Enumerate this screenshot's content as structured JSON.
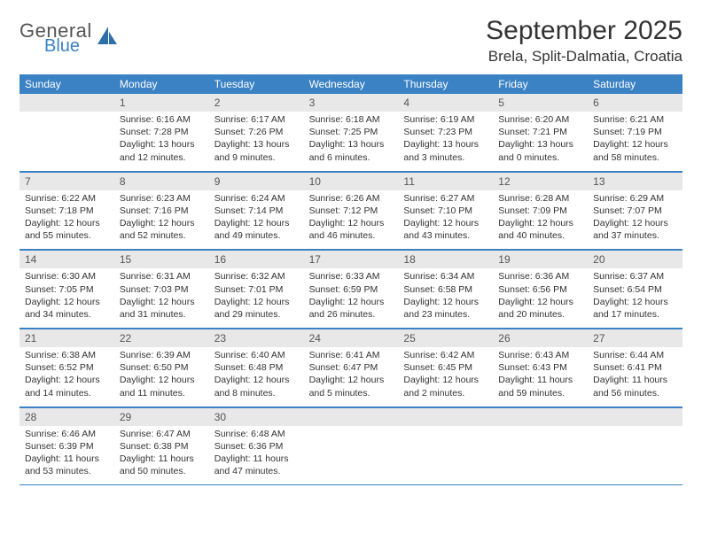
{
  "brand": {
    "general": "General",
    "blue": "Blue",
    "iconColor": "#2f6fa8"
  },
  "header": {
    "monthTitle": "September 2025",
    "location": "Brela, Split-Dalmatia, Croatia"
  },
  "colors": {
    "headerBar": "#3b82c4",
    "dayNumBand": "#e8e8e8",
    "ruleLine": "#3b82c4",
    "text": "#333333",
    "background": "#ffffff"
  },
  "weekdays": [
    "Sunday",
    "Monday",
    "Tuesday",
    "Wednesday",
    "Thursday",
    "Friday",
    "Saturday"
  ],
  "weeks": [
    [
      {
        "day": "",
        "sunrise": "",
        "sunset": "",
        "daylight": ""
      },
      {
        "day": "1",
        "sunrise": "Sunrise: 6:16 AM",
        "sunset": "Sunset: 7:28 PM",
        "daylight": "Daylight: 13 hours and 12 minutes."
      },
      {
        "day": "2",
        "sunrise": "Sunrise: 6:17 AM",
        "sunset": "Sunset: 7:26 PM",
        "daylight": "Daylight: 13 hours and 9 minutes."
      },
      {
        "day": "3",
        "sunrise": "Sunrise: 6:18 AM",
        "sunset": "Sunset: 7:25 PM",
        "daylight": "Daylight: 13 hours and 6 minutes."
      },
      {
        "day": "4",
        "sunrise": "Sunrise: 6:19 AM",
        "sunset": "Sunset: 7:23 PM",
        "daylight": "Daylight: 13 hours and 3 minutes."
      },
      {
        "day": "5",
        "sunrise": "Sunrise: 6:20 AM",
        "sunset": "Sunset: 7:21 PM",
        "daylight": "Daylight: 13 hours and 0 minutes."
      },
      {
        "day": "6",
        "sunrise": "Sunrise: 6:21 AM",
        "sunset": "Sunset: 7:19 PM",
        "daylight": "Daylight: 12 hours and 58 minutes."
      }
    ],
    [
      {
        "day": "7",
        "sunrise": "Sunrise: 6:22 AM",
        "sunset": "Sunset: 7:18 PM",
        "daylight": "Daylight: 12 hours and 55 minutes."
      },
      {
        "day": "8",
        "sunrise": "Sunrise: 6:23 AM",
        "sunset": "Sunset: 7:16 PM",
        "daylight": "Daylight: 12 hours and 52 minutes."
      },
      {
        "day": "9",
        "sunrise": "Sunrise: 6:24 AM",
        "sunset": "Sunset: 7:14 PM",
        "daylight": "Daylight: 12 hours and 49 minutes."
      },
      {
        "day": "10",
        "sunrise": "Sunrise: 6:26 AM",
        "sunset": "Sunset: 7:12 PM",
        "daylight": "Daylight: 12 hours and 46 minutes."
      },
      {
        "day": "11",
        "sunrise": "Sunrise: 6:27 AM",
        "sunset": "Sunset: 7:10 PM",
        "daylight": "Daylight: 12 hours and 43 minutes."
      },
      {
        "day": "12",
        "sunrise": "Sunrise: 6:28 AM",
        "sunset": "Sunset: 7:09 PM",
        "daylight": "Daylight: 12 hours and 40 minutes."
      },
      {
        "day": "13",
        "sunrise": "Sunrise: 6:29 AM",
        "sunset": "Sunset: 7:07 PM",
        "daylight": "Daylight: 12 hours and 37 minutes."
      }
    ],
    [
      {
        "day": "14",
        "sunrise": "Sunrise: 6:30 AM",
        "sunset": "Sunset: 7:05 PM",
        "daylight": "Daylight: 12 hours and 34 minutes."
      },
      {
        "day": "15",
        "sunrise": "Sunrise: 6:31 AM",
        "sunset": "Sunset: 7:03 PM",
        "daylight": "Daylight: 12 hours and 31 minutes."
      },
      {
        "day": "16",
        "sunrise": "Sunrise: 6:32 AM",
        "sunset": "Sunset: 7:01 PM",
        "daylight": "Daylight: 12 hours and 29 minutes."
      },
      {
        "day": "17",
        "sunrise": "Sunrise: 6:33 AM",
        "sunset": "Sunset: 6:59 PM",
        "daylight": "Daylight: 12 hours and 26 minutes."
      },
      {
        "day": "18",
        "sunrise": "Sunrise: 6:34 AM",
        "sunset": "Sunset: 6:58 PM",
        "daylight": "Daylight: 12 hours and 23 minutes."
      },
      {
        "day": "19",
        "sunrise": "Sunrise: 6:36 AM",
        "sunset": "Sunset: 6:56 PM",
        "daylight": "Daylight: 12 hours and 20 minutes."
      },
      {
        "day": "20",
        "sunrise": "Sunrise: 6:37 AM",
        "sunset": "Sunset: 6:54 PM",
        "daylight": "Daylight: 12 hours and 17 minutes."
      }
    ],
    [
      {
        "day": "21",
        "sunrise": "Sunrise: 6:38 AM",
        "sunset": "Sunset: 6:52 PM",
        "daylight": "Daylight: 12 hours and 14 minutes."
      },
      {
        "day": "22",
        "sunrise": "Sunrise: 6:39 AM",
        "sunset": "Sunset: 6:50 PM",
        "daylight": "Daylight: 12 hours and 11 minutes."
      },
      {
        "day": "23",
        "sunrise": "Sunrise: 6:40 AM",
        "sunset": "Sunset: 6:48 PM",
        "daylight": "Daylight: 12 hours and 8 minutes."
      },
      {
        "day": "24",
        "sunrise": "Sunrise: 6:41 AM",
        "sunset": "Sunset: 6:47 PM",
        "daylight": "Daylight: 12 hours and 5 minutes."
      },
      {
        "day": "25",
        "sunrise": "Sunrise: 6:42 AM",
        "sunset": "Sunset: 6:45 PM",
        "daylight": "Daylight: 12 hours and 2 minutes."
      },
      {
        "day": "26",
        "sunrise": "Sunrise: 6:43 AM",
        "sunset": "Sunset: 6:43 PM",
        "daylight": "Daylight: 11 hours and 59 minutes."
      },
      {
        "day": "27",
        "sunrise": "Sunrise: 6:44 AM",
        "sunset": "Sunset: 6:41 PM",
        "daylight": "Daylight: 11 hours and 56 minutes."
      }
    ],
    [
      {
        "day": "28",
        "sunrise": "Sunrise: 6:46 AM",
        "sunset": "Sunset: 6:39 PM",
        "daylight": "Daylight: 11 hours and 53 minutes."
      },
      {
        "day": "29",
        "sunrise": "Sunrise: 6:47 AM",
        "sunset": "Sunset: 6:38 PM",
        "daylight": "Daylight: 11 hours and 50 minutes."
      },
      {
        "day": "30",
        "sunrise": "Sunrise: 6:48 AM",
        "sunset": "Sunset: 6:36 PM",
        "daylight": "Daylight: 11 hours and 47 minutes."
      },
      {
        "day": "",
        "sunrise": "",
        "sunset": "",
        "daylight": ""
      },
      {
        "day": "",
        "sunrise": "",
        "sunset": "",
        "daylight": ""
      },
      {
        "day": "",
        "sunrise": "",
        "sunset": "",
        "daylight": ""
      },
      {
        "day": "",
        "sunrise": "",
        "sunset": "",
        "daylight": ""
      }
    ]
  ]
}
